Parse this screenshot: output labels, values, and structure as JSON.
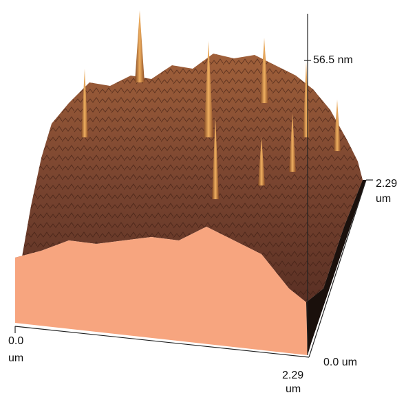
{
  "z_axis": {
    "max": "56.5 nm"
  },
  "y_axis": {
    "end_value": "2.29",
    "end_unit": "um",
    "start": "0.0 um"
  },
  "x_axis": {
    "start_value": "0.0",
    "start_unit": "um",
    "end_value": "2.29",
    "end_unit": "um"
  }
}
